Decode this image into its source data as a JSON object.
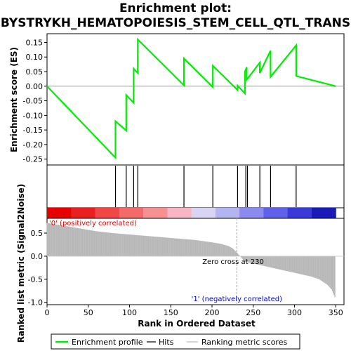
{
  "chart_data": {
    "type": "line",
    "title_line1": "Enrichment plot:",
    "title_line2": "BYSTRYKH_HEMATOPOIESIS_STEM_CELL_QTL_TRANS",
    "es_panel": {
      "ylabel": "Enrichment score (ES)",
      "ylim": [
        -0.27,
        0.18
      ],
      "yticks": [
        "0.15",
        "0.10",
        "0.05",
        "0.00",
        "-0.05",
        "-0.10",
        "-0.15",
        "-0.20",
        "-0.25"
      ],
      "ytick_values": [
        0.15,
        0.1,
        0.05,
        0.0,
        -0.05,
        -0.1,
        -0.15,
        -0.2,
        -0.25
      ],
      "series": [
        {
          "name": "Enrichment profile",
          "color": "#00ee00",
          "x": [
            0,
            83,
            83,
            96,
            96,
            105,
            105,
            110,
            110,
            166,
            166,
            201,
            201,
            231,
            231,
            240,
            240,
            242,
            242,
            258,
            258,
            271,
            271,
            302,
            302,
            350
          ],
          "y": [
            0.0,
            -0.245,
            -0.12,
            -0.152,
            -0.03,
            -0.057,
            0.06,
            0.045,
            0.16,
            0.003,
            0.095,
            -0.003,
            0.07,
            -0.013,
            0.002,
            -0.025,
            0.05,
            0.065,
            0.022,
            0.081,
            0.045,
            0.122,
            0.032,
            0.14,
            0.035,
            0.0
          ]
        }
      ]
    },
    "hits": {
      "name": "Hits",
      "positions": [
        83,
        96,
        105,
        110,
        166,
        201,
        231,
        241,
        243,
        258,
        271,
        302
      ]
    },
    "colorbar": {
      "stops": [
        "#e60000",
        "#e82020",
        "#f04646",
        "#f46a6a",
        "#f79090",
        "#f8b6c4",
        "#d8d4f2",
        "#b4b4f2",
        "#8a8af0",
        "#6060ea",
        "#3a3ad8",
        "#1a1ab8"
      ]
    },
    "metric_panel": {
      "ylabel": "Ranked list metric (Signal2Noise)",
      "ylim": [
        -1.05,
        0.82
      ],
      "yticks": [
        "0.5",
        "0.0",
        "-0.5",
        "-1.0"
      ],
      "ytick_values": [
        0.5,
        0.0,
        -0.5,
        -1.0
      ],
      "profile_x": [
        0,
        10,
        20,
        40,
        60,
        80,
        100,
        120,
        140,
        160,
        180,
        200,
        210,
        220,
        225,
        230,
        240,
        260,
        280,
        300,
        320,
        330,
        335,
        340,
        345,
        350
      ],
      "profile_y": [
        0.72,
        0.69,
        0.66,
        0.6,
        0.54,
        0.5,
        0.47,
        0.44,
        0.41,
        0.38,
        0.35,
        0.3,
        0.27,
        0.22,
        0.17,
        0.08,
        -0.12,
        -0.2,
        -0.28,
        -0.36,
        -0.44,
        -0.5,
        -0.56,
        -0.62,
        -0.72,
        -0.93
      ],
      "zero_cross_label": "Zero cross at 230",
      "zero_cross": 230,
      "pos_label": "'0' (positively correlated)",
      "neg_label": "'1' (negatively correlated)"
    },
    "xlabel": "Rank in Ordered Dataset",
    "xlim": [
      0,
      360
    ],
    "xticks": [
      "0",
      "50",
      "100",
      "150",
      "200",
      "250",
      "300",
      "350"
    ],
    "xtick_values": [
      0,
      50,
      100,
      150,
      200,
      250,
      300,
      350
    ],
    "legend": {
      "placement": "bottom",
      "items": [
        "Enrichment profile",
        "Hits",
        "Ranking metric scores"
      ]
    }
  }
}
